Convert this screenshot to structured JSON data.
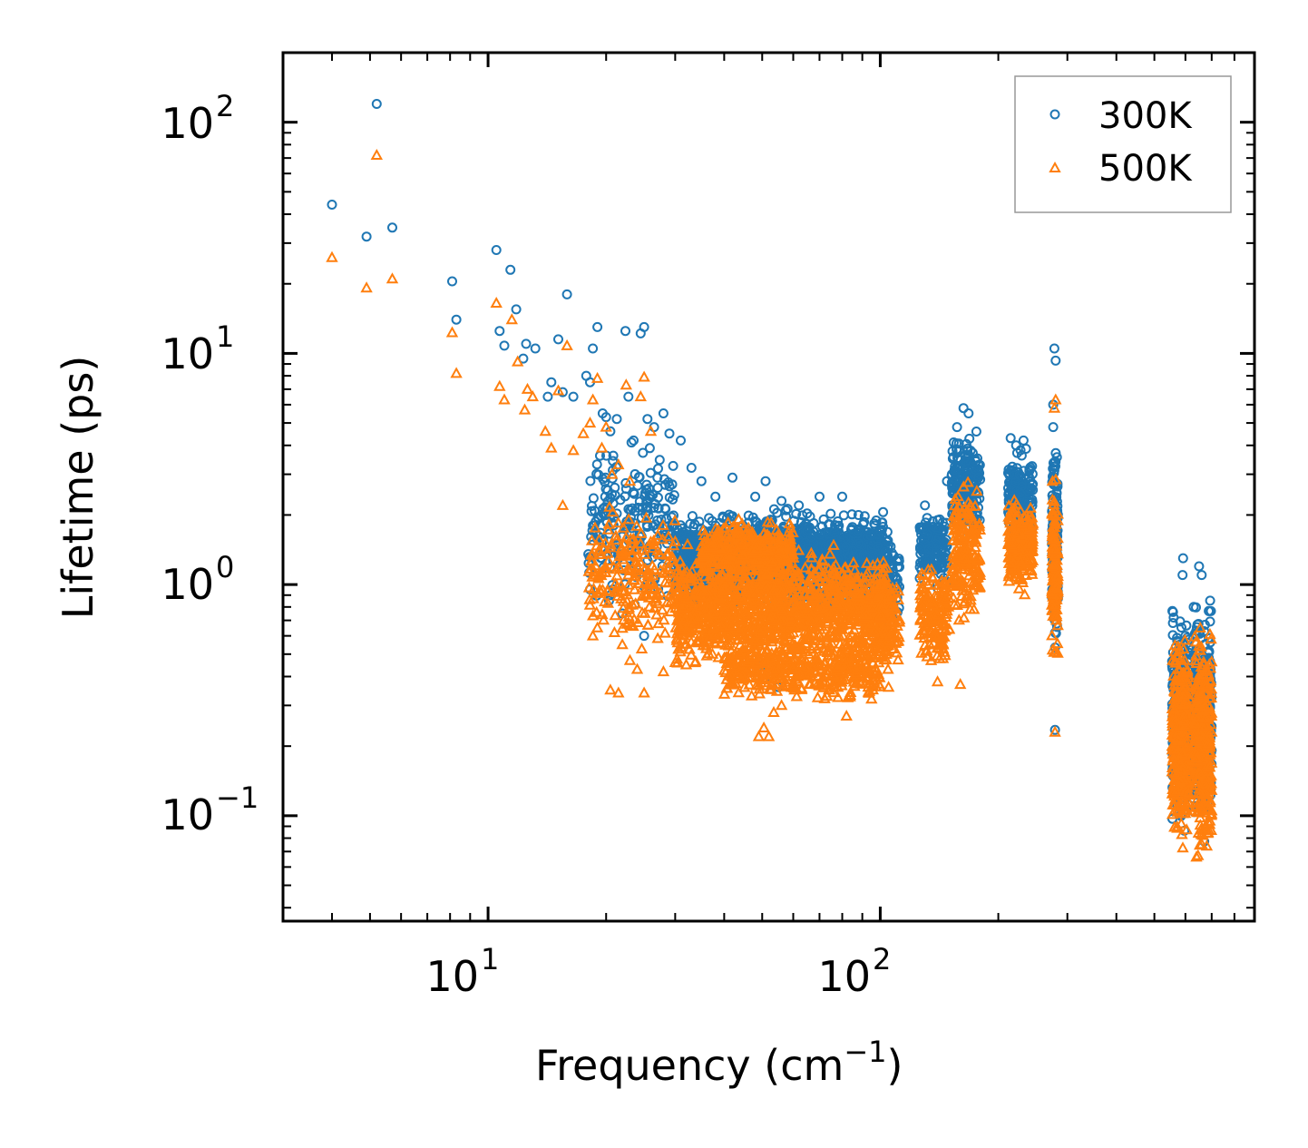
{
  "chart_data": {
    "type": "scatter",
    "title": "",
    "xlabel": "Frequency (cm",
    "xlabel_sup": "−1",
    "xlabel_end": ")",
    "ylabel": "Lifetime (ps)",
    "xscale": "log",
    "yscale": "log",
    "xlim": [
      3.0,
      900
    ],
    "ylim": [
      0.035,
      200
    ],
    "x_ticks": [
      {
        "value": 10,
        "base": "10",
        "exp": "1"
      },
      {
        "value": 100,
        "base": "10",
        "exp": "2"
      }
    ],
    "y_ticks": [
      {
        "value": 0.1,
        "base": "10",
        "exp": "−1"
      },
      {
        "value": 1,
        "base": "10",
        "exp": "0"
      },
      {
        "value": 10,
        "base": "10",
        "exp": "1"
      },
      {
        "value": 100,
        "base": "10",
        "exp": "2"
      }
    ],
    "grid": false,
    "legend_position": "top-right",
    "series": [
      {
        "name": "300K",
        "marker": "circle",
        "color": "#1f77b4",
        "points": [
          [
            4.0,
            44
          ],
          [
            4.9,
            32
          ],
          [
            5.2,
            120
          ],
          [
            5.7,
            35
          ],
          [
            8.1,
            20.5
          ],
          [
            8.3,
            14
          ],
          [
            10.5,
            28
          ],
          [
            10.7,
            12.5
          ],
          [
            11.0,
            10.8
          ],
          [
            11.4,
            23
          ],
          [
            11.8,
            15.5
          ],
          [
            12.3,
            9.5
          ],
          [
            12.5,
            11
          ],
          [
            13.2,
            10.5
          ],
          [
            14.2,
            6.5
          ],
          [
            14.5,
            7.5
          ],
          [
            15.1,
            11.5
          ],
          [
            15.5,
            6.8
          ],
          [
            15.9,
            18
          ],
          [
            16.5,
            6.5
          ],
          [
            17.8,
            8.0
          ],
          [
            18.2,
            7.5
          ],
          [
            18.5,
            10.5
          ],
          [
            19.0,
            13
          ],
          [
            19.6,
            5.5
          ],
          [
            20.0,
            5.3
          ],
          [
            20.5,
            4.6
          ],
          [
            21.3,
            5.2
          ],
          [
            22.4,
            12.5
          ],
          [
            22.8,
            6.5
          ],
          [
            23.5,
            4.2
          ],
          [
            24.5,
            12.2
          ],
          [
            25.0,
            13
          ],
          [
            25.5,
            5.2
          ],
          [
            26.5,
            4.8
          ],
          [
            28.0,
            5.5
          ],
          [
            29.0,
            4.5
          ],
          [
            31.0,
            4.2
          ],
          [
            33.0,
            3.2
          ],
          [
            35.0,
            2.8
          ],
          [
            38.0,
            2.4
          ],
          [
            42.0,
            2.9
          ],
          [
            48.0,
            2.4
          ],
          [
            51.0,
            2.8
          ],
          [
            56.0,
            2.3
          ],
          [
            62.0,
            2.2
          ],
          [
            70.0,
            2.4
          ],
          [
            80.0,
            2.4
          ],
          [
            88.0,
            2.0
          ],
          [
            97.0,
            1.8
          ],
          [
            18.5,
            1.8
          ],
          [
            19.5,
            1.3
          ],
          [
            20.5,
            0.9
          ],
          [
            22.0,
            0.75
          ],
          [
            25.0,
            0.6
          ],
          [
            28.0,
            1.6
          ],
          [
            33.0,
            1.3
          ],
          [
            38.0,
            1.8
          ],
          [
            45.0,
            1.7
          ],
          [
            50.0,
            0.45
          ],
          [
            53.0,
            0.38
          ],
          [
            55.0,
            0.36
          ],
          [
            60.0,
            1.6
          ],
          [
            65.0,
            1.7
          ],
          [
            75.0,
            1.5
          ],
          [
            85.0,
            1.4
          ],
          [
            95.0,
            1.1
          ],
          [
            102.0,
            1.2
          ],
          [
            108.0,
            0.8
          ],
          [
            130.0,
            2.2
          ],
          [
            140.0,
            1.9
          ],
          [
            148.0,
            2.8
          ],
          [
            157.0,
            4.8
          ],
          [
            163.0,
            5.8
          ],
          [
            168.0,
            5.5
          ],
          [
            172.0,
            2.6
          ],
          [
            178.0,
            2.9
          ],
          [
            215.0,
            4.3
          ],
          [
            222.0,
            4.0
          ],
          [
            232.0,
            4.2
          ],
          [
            240.0,
            3.1
          ],
          [
            276.0,
            6.0
          ],
          [
            278.0,
            10.5
          ],
          [
            280.0,
            9.3
          ],
          [
            279.0,
            0.235
          ],
          [
            276.0,
            4.8
          ],
          [
            560.0,
            0.72
          ],
          [
            570.0,
            0.45
          ],
          [
            590.0,
            1.1
          ],
          [
            592.0,
            1.3
          ],
          [
            600.0,
            0.6
          ],
          [
            630.0,
            0.8
          ],
          [
            650.0,
            1.2
          ],
          [
            660.0,
            1.1
          ],
          [
            580.0,
            0.15
          ],
          [
            640.0,
            0.14
          ]
        ],
        "clusters": [
          {
            "x": [
              18,
              30
            ],
            "y": [
              0.7,
              5.0
            ],
            "n": 220
          },
          {
            "x": [
              30,
              105
            ],
            "y": [
              0.7,
              2.3
            ],
            "n": 1300
          },
          {
            "x": [
              38,
              100
            ],
            "y": [
              0.9,
              2.0
            ],
            "n": 600
          },
          {
            "x": [
              100,
              112
            ],
            "y": [
              0.6,
              1.8
            ],
            "n": 80
          },
          {
            "x": [
              126,
              148
            ],
            "y": [
              0.9,
              2.3
            ],
            "n": 160
          },
          {
            "x": [
              152,
              180
            ],
            "y": [
              1.4,
              5.2
            ],
            "n": 200
          },
          {
            "x": [
              212,
              245
            ],
            "y": [
              1.2,
              4.2
            ],
            "n": 220
          },
          {
            "x": [
              274,
              284
            ],
            "y": [
              0.45,
              5.5
            ],
            "n": 140
          },
          {
            "x": [
              555,
              615
            ],
            "y": [
              0.08,
              0.9
            ],
            "n": 320
          },
          {
            "x": [
              632,
              700
            ],
            "y": [
              0.07,
              1.0
            ],
            "n": 320
          }
        ]
      },
      {
        "name": "500K",
        "marker": "triangle",
        "color": "#ff7f0e",
        "points": [
          [
            4.0,
            26
          ],
          [
            4.9,
            19.2
          ],
          [
            5.2,
            72
          ],
          [
            5.7,
            21
          ],
          [
            8.1,
            12.3
          ],
          [
            8.3,
            8.2
          ],
          [
            10.5,
            16.5
          ],
          [
            10.7,
            7.2
          ],
          [
            11.0,
            6.3
          ],
          [
            11.5,
            14
          ],
          [
            11.9,
            9.2
          ],
          [
            12.4,
            5.7
          ],
          [
            12.6,
            7
          ],
          [
            13.0,
            6.5
          ],
          [
            14.0,
            4.6
          ],
          [
            14.5,
            3.9
          ],
          [
            15.1,
            6.9
          ],
          [
            15.5,
            2.2
          ],
          [
            15.9,
            10.8
          ],
          [
            16.5,
            3.8
          ],
          [
            17.5,
            4.5
          ],
          [
            18.2,
            5.0
          ],
          [
            18.5,
            6.3
          ],
          [
            19.0,
            7.8
          ],
          [
            19.5,
            3.9
          ],
          [
            20.0,
            4.8
          ],
          [
            20.7,
            3.0
          ],
          [
            21.5,
            3.3
          ],
          [
            22.5,
            7.3
          ],
          [
            23.0,
            2.8
          ],
          [
            24.5,
            6.5
          ],
          [
            25.0,
            7.9
          ],
          [
            26.0,
            4.6
          ],
          [
            21.0,
            0.62
          ],
          [
            22.0,
            0.55
          ],
          [
            23.0,
            0.47
          ],
          [
            24.0,
            0.43
          ],
          [
            20.5,
            0.35
          ],
          [
            21.5,
            0.34
          ],
          [
            25.0,
            0.34
          ],
          [
            28.0,
            0.42
          ],
          [
            19.0,
            0.65
          ],
          [
            18.5,
            0.6
          ],
          [
            30.0,
            0.46
          ],
          [
            32.0,
            0.45
          ],
          [
            49.0,
            0.22
          ],
          [
            50.5,
            0.24
          ],
          [
            52.0,
            0.22
          ],
          [
            53.5,
            0.28
          ],
          [
            47.0,
            0.33
          ],
          [
            56.0,
            0.3
          ],
          [
            82.0,
            0.27
          ],
          [
            95.0,
            0.32
          ],
          [
            105.0,
            0.36
          ],
          [
            140.0,
            0.38
          ],
          [
            160.0,
            0.37
          ],
          [
            279.0,
            0.23
          ],
          [
            280.0,
            6.3
          ],
          [
            278.0,
            5.8
          ]
        ],
        "clusters": [
          {
            "x": [
              18,
              30
            ],
            "y": [
              0.45,
              2.8
            ],
            "n": 220
          },
          {
            "x": [
              30,
              105
            ],
            "y": [
              0.38,
              1.6
            ],
            "n": 1400
          },
          {
            "x": [
              35,
              60
            ],
            "y": [
              1.0,
              2.0
            ],
            "n": 350
          },
          {
            "x": [
              40,
              100
            ],
            "y": [
              0.3,
              0.6
            ],
            "n": 400
          },
          {
            "x": [
              100,
              112
            ],
            "y": [
              0.38,
              1.2
            ],
            "n": 80
          },
          {
            "x": [
              126,
              150
            ],
            "y": [
              0.4,
              1.4
            ],
            "n": 160
          },
          {
            "x": [
              152,
              180
            ],
            "y": [
              0.6,
              3.2
            ],
            "n": 200
          },
          {
            "x": [
              212,
              245
            ],
            "y": [
              0.85,
              2.6
            ],
            "n": 220
          },
          {
            "x": [
              274,
              284
            ],
            "y": [
              0.38,
              3.6
            ],
            "n": 140
          },
          {
            "x": [
              555,
              615
            ],
            "y": [
              0.062,
              0.75
            ],
            "n": 340
          },
          {
            "x": [
              632,
              700
            ],
            "y": [
              0.05,
              0.78
            ],
            "n": 340
          }
        ]
      }
    ]
  }
}
